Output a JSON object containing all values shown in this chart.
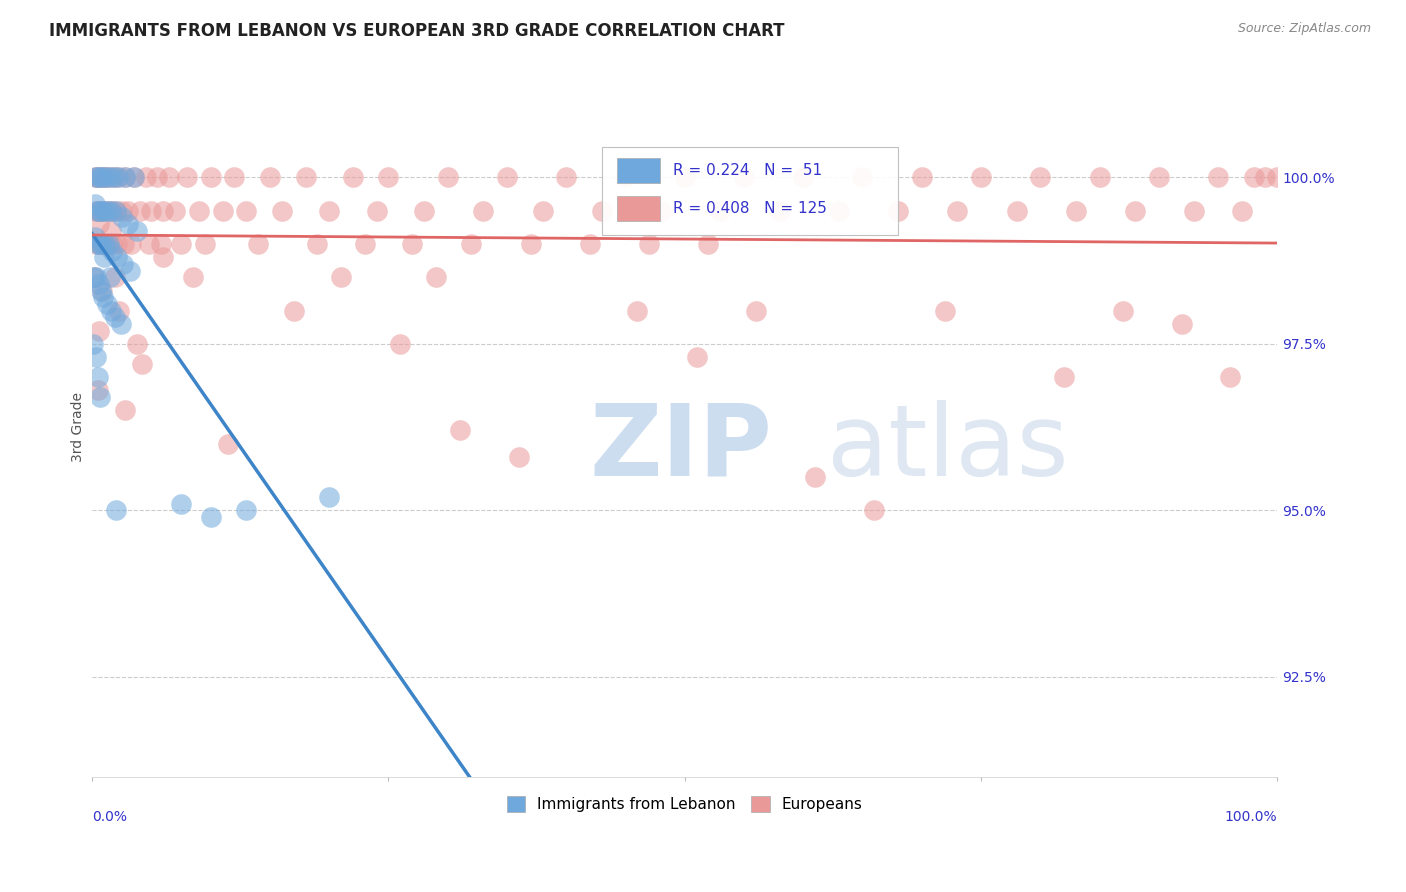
{
  "title": "IMMIGRANTS FROM LEBANON VS EUROPEAN 3RD GRADE CORRELATION CHART",
  "source": "Source: ZipAtlas.com",
  "ylabel": "3rd Grade",
  "ytick_values": [
    92.5,
    95.0,
    97.5,
    100.0
  ],
  "xlim": [
    0.0,
    100.0
  ],
  "ylim": [
    91.0,
    101.5
  ],
  "lebanon_color": "#6fa8dc",
  "european_color": "#ea9999",
  "legend_label_lebanon": "Immigrants from Lebanon",
  "legend_label_european": "Europeans",
  "r_lebanon": 0.224,
  "n_lebanon": 51,
  "r_european": 0.408,
  "n_european": 125,
  "lebanon_x": [
    0.3,
    0.5,
    0.7,
    0.9,
    1.2,
    1.5,
    1.8,
    2.2,
    2.8,
    3.5,
    0.2,
    0.4,
    0.6,
    0.8,
    1.0,
    1.3,
    1.6,
    2.0,
    2.5,
    3.0,
    0.25,
    0.45,
    0.65,
    0.85,
    1.1,
    1.4,
    1.7,
    2.1,
    2.6,
    3.2,
    0.15,
    0.35,
    0.55,
    0.75,
    0.95,
    1.25,
    1.55,
    1.9,
    2.4,
    3.8,
    0.1,
    0.3,
    0.5,
    0.7,
    1.0,
    1.5,
    2.0,
    7.5,
    10.0,
    13.0,
    20.0
  ],
  "lebanon_y": [
    100.0,
    100.0,
    100.0,
    100.0,
    100.0,
    100.0,
    100.0,
    100.0,
    100.0,
    100.0,
    99.6,
    99.5,
    99.5,
    99.5,
    99.5,
    99.5,
    99.5,
    99.5,
    99.4,
    99.3,
    99.1,
    99.0,
    99.0,
    99.0,
    99.0,
    99.0,
    98.9,
    98.8,
    98.7,
    98.6,
    98.5,
    98.5,
    98.4,
    98.3,
    98.2,
    98.1,
    98.0,
    97.9,
    97.8,
    99.2,
    97.5,
    97.3,
    97.0,
    96.7,
    98.8,
    98.5,
    95.0,
    95.1,
    94.9,
    95.0,
    95.2
  ],
  "european_x": [
    0.2,
    0.4,
    0.6,
    0.8,
    1.0,
    1.2,
    1.5,
    1.8,
    2.2,
    2.8,
    3.5,
    4.5,
    5.5,
    6.5,
    8.0,
    10.0,
    12.0,
    15.0,
    18.0,
    22.0,
    25.0,
    30.0,
    35.0,
    40.0,
    45.0,
    50.0,
    55.0,
    60.0,
    65.0,
    70.0,
    75.0,
    80.0,
    85.0,
    90.0,
    95.0,
    98.0,
    99.0,
    100.0,
    0.3,
    0.5,
    0.7,
    0.9,
    1.1,
    1.4,
    1.7,
    2.0,
    2.5,
    3.0,
    4.0,
    5.0,
    6.0,
    7.0,
    9.0,
    11.0,
    13.0,
    16.0,
    20.0,
    24.0,
    28.0,
    33.0,
    38.0,
    43.0,
    48.0,
    53.0,
    58.0,
    63.0,
    68.0,
    73.0,
    78.0,
    83.0,
    88.0,
    93.0,
    97.0,
    0.35,
    0.55,
    0.75,
    1.05,
    1.35,
    1.65,
    2.1,
    2.7,
    3.3,
    4.8,
    5.8,
    7.5,
    9.5,
    14.0,
    19.0,
    23.0,
    27.0,
    32.0,
    37.0,
    42.0,
    47.0,
    52.0,
    0.15,
    1.9,
    8.5,
    29.0,
    0.8,
    2.3,
    17.0,
    46.0,
    72.0,
    87.0,
    0.6,
    3.8,
    26.0,
    51.0,
    82.0,
    96.0,
    1.6,
    6.0,
    21.0,
    56.0,
    92.0,
    0.45,
    2.8,
    11.5,
    36.0,
    61.0,
    0.55,
    4.2,
    31.0,
    66.0
  ],
  "european_y": [
    100.0,
    100.0,
    100.0,
    100.0,
    100.0,
    100.0,
    100.0,
    100.0,
    100.0,
    100.0,
    100.0,
    100.0,
    100.0,
    100.0,
    100.0,
    100.0,
    100.0,
    100.0,
    100.0,
    100.0,
    100.0,
    100.0,
    100.0,
    100.0,
    100.0,
    100.0,
    100.0,
    100.0,
    100.0,
    100.0,
    100.0,
    100.0,
    100.0,
    100.0,
    100.0,
    100.0,
    100.0,
    100.0,
    99.5,
    99.5,
    99.5,
    99.5,
    99.5,
    99.5,
    99.5,
    99.5,
    99.5,
    99.5,
    99.5,
    99.5,
    99.5,
    99.5,
    99.5,
    99.5,
    99.5,
    99.5,
    99.5,
    99.5,
    99.5,
    99.5,
    99.5,
    99.5,
    99.5,
    99.5,
    99.5,
    99.5,
    99.5,
    99.5,
    99.5,
    99.5,
    99.5,
    99.5,
    99.5,
    99.0,
    99.0,
    99.0,
    99.0,
    99.0,
    99.0,
    99.0,
    99.0,
    99.0,
    99.0,
    99.0,
    99.0,
    99.0,
    99.0,
    99.0,
    99.0,
    99.0,
    99.0,
    99.0,
    99.0,
    99.0,
    99.0,
    98.5,
    98.5,
    98.5,
    98.5,
    98.3,
    98.0,
    98.0,
    98.0,
    98.0,
    98.0,
    97.7,
    97.5,
    97.5,
    97.3,
    97.0,
    97.0,
    99.2,
    98.8,
    98.5,
    98.0,
    97.8,
    96.8,
    96.5,
    96.0,
    95.8,
    95.5,
    99.3,
    97.2,
    96.2,
    95.0
  ]
}
